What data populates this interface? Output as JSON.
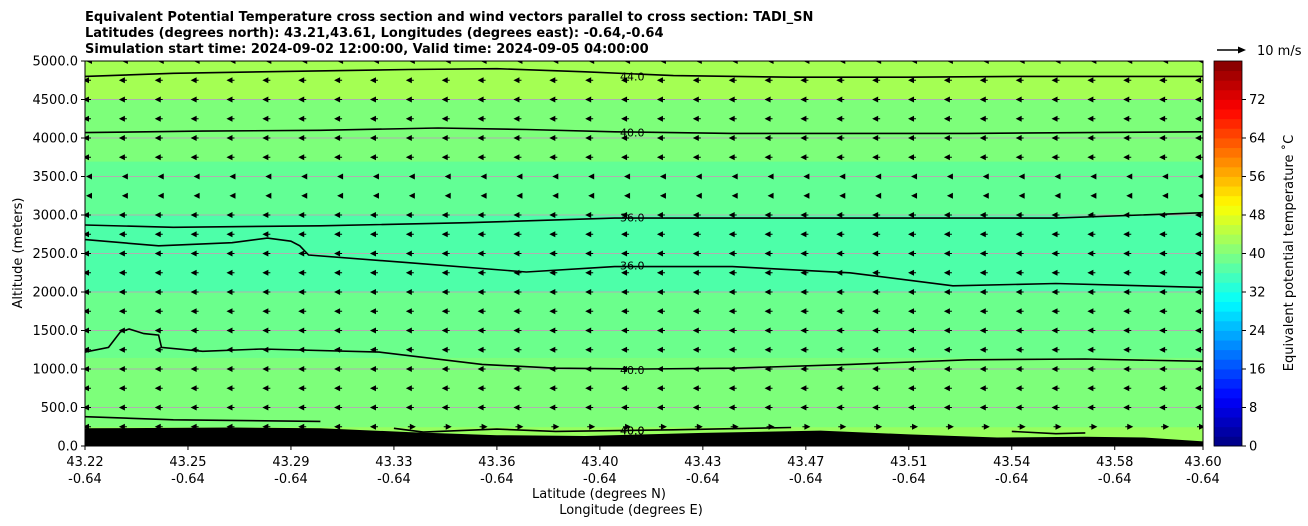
{
  "chart_data": {
    "type": "heatmap",
    "title_lines": [
      "Equivalent Potential Temperature cross section and wind vectors parallel to cross section: TADI_SN",
      "Latitudes (degrees north): 43.21,43.61, Longitudes (degrees east): -0.64,-0.64",
      "Simulation start time: 2024-09-02 12:00:00, Valid time: 2024-09-05 04:00:00"
    ],
    "xlabel_lines": [
      "Latitude (degrees N)",
      "Longitude (degrees E)"
    ],
    "ylabel": "Altitude (meters)",
    "xlim": [
      43.22,
      43.6
    ],
    "ylim": [
      0,
      5000
    ],
    "x_ticks": [
      {
        "value": 43.22,
        "lat": "43.22",
        "lon": "-0.64"
      },
      {
        "value": 43.255,
        "lat": "43.25",
        "lon": "-0.64"
      },
      {
        "value": 43.29,
        "lat": "43.29",
        "lon": "-0.64"
      },
      {
        "value": 43.325,
        "lat": "43.33",
        "lon": "-0.64"
      },
      {
        "value": 43.36,
        "lat": "43.36",
        "lon": "-0.64"
      },
      {
        "value": 43.395,
        "lat": "43.40",
        "lon": "-0.64"
      },
      {
        "value": 43.43,
        "lat": "43.43",
        "lon": "-0.64"
      },
      {
        "value": 43.465,
        "lat": "43.47",
        "lon": "-0.64"
      },
      {
        "value": 43.5,
        "lat": "43.51",
        "lon": "-0.64"
      },
      {
        "value": 43.535,
        "lat": "43.54",
        "lon": "-0.64"
      },
      {
        "value": 43.57,
        "lat": "43.58",
        "lon": "-0.64"
      },
      {
        "value": 43.6,
        "lat": "43.60",
        "lon": "-0.64"
      }
    ],
    "y_ticks": [
      {
        "value": 0,
        "label": "0.0"
      },
      {
        "value": 500,
        "label": "500.0"
      },
      {
        "value": 1000,
        "label": "1000.0"
      },
      {
        "value": 1500,
        "label": "1500.0"
      },
      {
        "value": 2000,
        "label": "2000.0"
      },
      {
        "value": 2500,
        "label": "2500.0"
      },
      {
        "value": 3000,
        "label": "3000.0"
      },
      {
        "value": 3500,
        "label": "3500.0"
      },
      {
        "value": 4000,
        "label": "4000.0"
      },
      {
        "value": 4500,
        "label": "4500.0"
      },
      {
        "value": 5000,
        "label": "5000.0"
      }
    ],
    "grid": "horizontal",
    "colorbar": {
      "label": "Equivalent potential temperature ˚C",
      "range": [
        0,
        80
      ],
      "ticks": [
        {
          "value": 0,
          "label": "0"
        },
        {
          "value": 8,
          "label": "8"
        },
        {
          "value": 16,
          "label": "16"
        },
        {
          "value": 24,
          "label": "24"
        },
        {
          "value": 32,
          "label": "32"
        },
        {
          "value": 40,
          "label": "40"
        },
        {
          "value": 48,
          "label": "48"
        },
        {
          "value": 56,
          "label": "56"
        },
        {
          "value": 64,
          "label": "64"
        },
        {
          "value": 72,
          "label": "72"
        }
      ],
      "colormap": "jet",
      "levels": 40
    },
    "field_bands": [
      {
        "from": 0,
        "to": 250,
        "theta_e": 41,
        "color": "#98ff5e"
      },
      {
        "from": 250,
        "to": 1150,
        "theta_e": 38,
        "color": "#7dff7a"
      },
      {
        "from": 1150,
        "to": 2000,
        "theta_e": 37,
        "color": "#6bff8c"
      },
      {
        "from": 2000,
        "to": 3000,
        "theta_e": 35,
        "color": "#4dffa9"
      },
      {
        "from": 3000,
        "to": 3700,
        "theta_e": 37,
        "color": "#62ff95"
      },
      {
        "from": 3700,
        "to": 4500,
        "theta_e": 39,
        "color": "#7dff7a"
      },
      {
        "from": 4500,
        "to": 5000,
        "theta_e": 43,
        "color": "#a4ff53"
      }
    ],
    "contours": [
      {
        "level": 44,
        "label": "44.0",
        "label_x": 43.406,
        "label_y": 4800,
        "points": [
          [
            43.22,
            4800
          ],
          [
            43.25,
            4840
          ],
          [
            43.28,
            4860
          ],
          [
            43.33,
            4890
          ],
          [
            43.36,
            4900
          ],
          [
            43.39,
            4860
          ],
          [
            43.42,
            4810
          ],
          [
            43.46,
            4790
          ],
          [
            43.5,
            4790
          ],
          [
            43.54,
            4800
          ],
          [
            43.6,
            4800
          ]
        ]
      },
      {
        "level": 40,
        "label": "40.0",
        "label_x": 43.406,
        "label_y": 4070,
        "points": [
          [
            43.22,
            4070
          ],
          [
            43.26,
            4090
          ],
          [
            43.3,
            4100
          ],
          [
            43.34,
            4130
          ],
          [
            43.37,
            4110
          ],
          [
            43.4,
            4080
          ],
          [
            43.44,
            4060
          ],
          [
            43.48,
            4060
          ],
          [
            43.52,
            4060
          ],
          [
            43.56,
            4070
          ],
          [
            43.6,
            4080
          ]
        ]
      },
      {
        "level": 36,
        "label": "36.0",
        "label_x": 43.406,
        "label_y": 2970,
        "points": [
          [
            43.22,
            2870
          ],
          [
            43.25,
            2840
          ],
          [
            43.3,
            2860
          ],
          [
            43.35,
            2900
          ],
          [
            43.4,
            2960
          ],
          [
            43.45,
            2960
          ],
          [
            43.5,
            2960
          ],
          [
            43.55,
            2960
          ],
          [
            43.6,
            3030
          ]
        ]
      },
      {
        "level": 36,
        "label": "36.0",
        "label_x": 43.406,
        "label_y": 2345,
        "points": [
          [
            43.22,
            2680
          ],
          [
            43.245,
            2600
          ],
          [
            43.27,
            2640
          ],
          [
            43.282,
            2700
          ],
          [
            43.29,
            2660
          ],
          [
            43.293,
            2600
          ],
          [
            43.296,
            2480
          ],
          [
            43.33,
            2380
          ],
          [
            43.37,
            2260
          ],
          [
            43.4,
            2330
          ],
          [
            43.44,
            2330
          ],
          [
            43.48,
            2250
          ],
          [
            43.515,
            2080
          ],
          [
            43.55,
            2110
          ],
          [
            43.6,
            2060
          ]
        ]
      },
      {
        "level": 40,
        "label": "40.0",
        "label_x": 43.406,
        "label_y": 990,
        "points": [
          [
            43.22,
            1220
          ],
          [
            43.228,
            1280
          ],
          [
            43.232,
            1480
          ],
          [
            43.235,
            1520
          ],
          [
            43.24,
            1460
          ],
          [
            43.245,
            1440
          ],
          [
            43.246,
            1280
          ],
          [
            43.26,
            1230
          ],
          [
            43.28,
            1260
          ],
          [
            43.32,
            1220
          ],
          [
            43.355,
            1060
          ],
          [
            43.38,
            1010
          ],
          [
            43.41,
            1000
          ],
          [
            43.44,
            1010
          ],
          [
            43.48,
            1060
          ],
          [
            43.52,
            1120
          ],
          [
            43.56,
            1130
          ],
          [
            43.6,
            1100
          ]
        ]
      },
      {
        "level": 40,
        "label": "40.0",
        "label_x": 43.406,
        "label_y": 200,
        "points": [
          [
            43.22,
            380
          ],
          [
            43.25,
            340
          ],
          [
            43.3,
            320
          ]
        ]
      },
      {
        "level": 40,
        "label": "40.0",
        "label_x": 43.406,
        "label_y": 200,
        "points": [
          [
            43.325,
            230
          ],
          [
            43.335,
            180
          ],
          [
            43.36,
            220
          ],
          [
            43.38,
            190
          ],
          [
            43.42,
            210
          ],
          [
            43.46,
            240
          ]
        ]
      },
      {
        "level": 40,
        "label": "",
        "label_x": 43.6,
        "label_y": 0,
        "points": [
          [
            43.535,
            190
          ],
          [
            43.55,
            160
          ],
          [
            43.56,
            170
          ]
        ]
      }
    ],
    "terrain": [
      [
        43.22,
        230
      ],
      [
        43.27,
        240
      ],
      [
        43.3,
        230
      ],
      [
        43.33,
        180
      ],
      [
        43.36,
        140
      ],
      [
        43.39,
        130
      ],
      [
        43.43,
        170
      ],
      [
        43.47,
        200
      ],
      [
        43.5,
        150
      ],
      [
        43.53,
        110
      ],
      [
        43.56,
        120
      ],
      [
        43.58,
        110
      ],
      [
        43.6,
        60
      ]
    ],
    "wind_vectors": {
      "direction": "north_to_south",
      "typical_speed_ms": 3,
      "rows_altitude": [
        0,
        250,
        500,
        750,
        1000,
        1250,
        1500,
        1750,
        2000,
        2250,
        2500,
        2750,
        3000,
        3250,
        3500,
        3750,
        4000,
        4250,
        4500,
        4750,
        5000
      ],
      "columns": 32,
      "near_surface_direction": "south_to_north",
      "reference_label": "10 m/s",
      "reference_speed_ms": 10
    }
  },
  "colors": {
    "contour": "#000000",
    "terrain": "#000000",
    "grid": "#b0b0b0",
    "arrow": "#000000"
  }
}
